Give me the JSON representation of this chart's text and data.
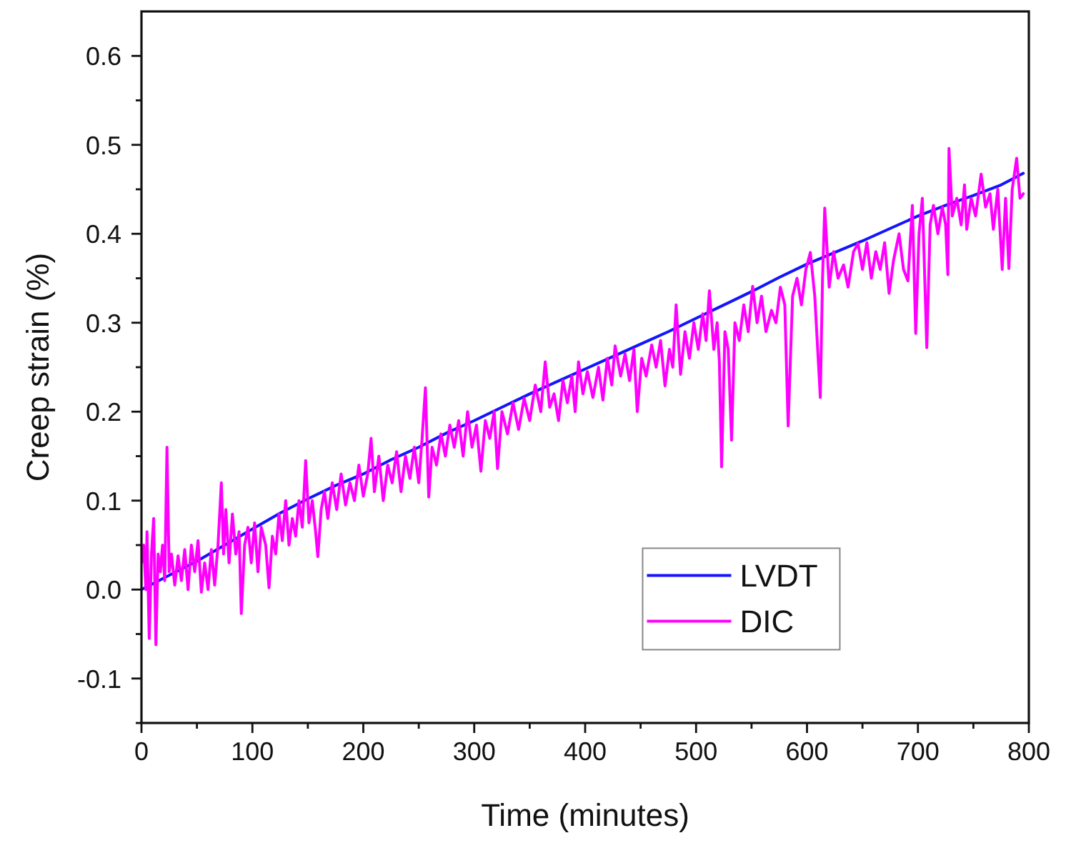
{
  "chart_data": {
    "type": "line",
    "xlabel": "Time (minutes)",
    "ylabel": "Creep strain (%)",
    "xlim": [
      0,
      800
    ],
    "ylim": [
      -0.15,
      0.65
    ],
    "xticks": [
      0,
      {
        "value": 50,
        "label": null
      },
      100,
      {
        "value": 150,
        "label": null
      },
      200,
      {
        "value": 250,
        "label": null
      },
      300,
      {
        "value": 350,
        "label": null
      },
      400,
      {
        "value": 450,
        "label": null
      },
      500,
      {
        "value": 550,
        "label": null
      },
      600,
      {
        "value": 650,
        "label": null
      },
      700,
      {
        "value": 750,
        "label": null
      },
      800
    ],
    "yticks": [
      {
        "value": -0.15,
        "label": null
      },
      -0.1,
      {
        "value": -0.05,
        "label": null
      },
      {
        "value": 0,
        "label": "0.0"
      },
      {
        "value": 0.05,
        "label": null
      },
      0.1,
      {
        "value": 0.15,
        "label": null
      },
      0.2,
      {
        "value": 0.25,
        "label": null
      },
      0.3,
      {
        "value": 0.35,
        "label": null
      },
      0.4,
      {
        "value": 0.45,
        "label": null
      },
      0.5,
      {
        "value": 0.55,
        "label": null
      },
      0.6
    ],
    "legend": "bottom right",
    "series": [
      {
        "name": "LVDT",
        "color": "#1414ff",
        "x": [
          0,
          25,
          50,
          75,
          100,
          125,
          150,
          175,
          200,
          225,
          250,
          275,
          300,
          325,
          350,
          375,
          400,
          425,
          450,
          475,
          500,
          525,
          550,
          575,
          600,
          625,
          650,
          675,
          700,
          725,
          750,
          775,
          795
        ],
        "values": [
          0,
          0.016,
          0.032,
          0.05,
          0.068,
          0.086,
          0.102,
          0.117,
          0.13,
          0.146,
          0.16,
          0.176,
          0.19,
          0.205,
          0.22,
          0.234,
          0.248,
          0.262,
          0.276,
          0.29,
          0.305,
          0.32,
          0.335,
          0.351,
          0.366,
          0.379,
          0.392,
          0.406,
          0.42,
          0.432,
          0.443,
          0.455,
          0.468
        ]
      },
      {
        "name": "DIC",
        "color": "#ff00ff",
        "x": [
          0,
          2,
          4,
          5,
          7,
          9,
          11,
          13,
          15,
          17,
          19,
          21,
          23,
          25,
          27,
          30,
          33,
          36,
          39,
          42,
          45,
          48,
          51,
          54,
          57,
          60,
          63,
          66,
          69,
          72,
          74,
          76,
          79,
          82,
          85,
          88,
          90,
          93,
          96,
          99,
          102,
          105,
          108,
          112,
          115,
          118,
          121,
          124,
          127,
          130,
          133,
          136,
          139,
          142,
          145,
          148,
          151,
          154,
          157,
          159,
          162,
          165,
          168,
          172,
          176,
          180,
          184,
          188,
          192,
          196,
          200,
          204,
          207,
          210,
          214,
          218,
          222,
          226,
          230,
          234,
          238,
          242,
          246,
          250,
          253,
          256,
          259,
          262,
          266,
          270,
          274,
          278,
          282,
          286,
          290,
          294,
          298,
          302,
          306,
          310,
          314,
          318,
          321,
          325,
          330,
          335,
          340,
          345,
          350,
          355,
          360,
          364,
          368,
          372,
          376,
          380,
          384,
          388,
          391,
          394,
          398,
          402,
          407,
          412,
          416,
          420,
          424,
          427,
          432,
          436,
          440,
          444,
          447,
          451,
          455,
          460,
          464,
          468,
          472,
          476,
          479,
          482,
          486,
          490,
          494,
          498,
          502,
          506,
          509,
          512,
          516,
          519,
          521,
          523,
          526,
          529,
          532,
          535,
          539,
          543,
          547,
          551,
          555,
          559,
          563,
          568,
          572,
          576,
          580,
          583,
          587,
          591,
          595,
          599,
          603,
          607,
          612,
          614,
          616,
          620,
          624,
          628,
          633,
          637,
          642,
          646,
          650,
          654,
          658,
          662,
          666,
          670,
          674,
          678,
          683,
          687,
          691,
          695,
          698,
          701,
          704,
          708,
          711,
          714,
          718,
          722,
          725,
          727,
          728,
          731,
          735,
          739,
          742,
          744,
          748,
          752,
          757,
          761,
          765,
          768,
          772,
          776,
          779,
          782,
          785,
          789,
          792,
          795
        ],
        "values": [
          0.03,
          0.05,
          0.0,
          0.065,
          -0.055,
          0.04,
          0.08,
          -0.062,
          0.04,
          0.02,
          0.05,
          0.01,
          0.16,
          0.02,
          0.04,
          0.005,
          0.038,
          0.01,
          0.045,
          0.0,
          0.05,
          0.02,
          0.055,
          -0.003,
          0.03,
          0.0,
          0.045,
          0.005,
          0.05,
          0.12,
          0.04,
          0.09,
          0.03,
          0.085,
          0.04,
          0.065,
          -0.027,
          0.05,
          0.07,
          0.03,
          0.075,
          0.02,
          0.07,
          0.05,
          0.002,
          0.06,
          0.04,
          0.085,
          0.055,
          0.1,
          0.05,
          0.08,
          0.06,
          0.1,
          0.07,
          0.145,
          0.075,
          0.1,
          0.065,
          0.037,
          0.09,
          0.11,
          0.08,
          0.12,
          0.09,
          0.13,
          0.095,
          0.12,
          0.1,
          0.14,
          0.105,
          0.13,
          0.17,
          0.11,
          0.15,
          0.1,
          0.14,
          0.12,
          0.155,
          0.11,
          0.15,
          0.125,
          0.16,
          0.12,
          0.17,
          0.227,
          0.104,
          0.16,
          0.14,
          0.175,
          0.15,
          0.185,
          0.16,
          0.19,
          0.15,
          0.2,
          0.16,
          0.185,
          0.133,
          0.19,
          0.17,
          0.2,
          0.136,
          0.2,
          0.175,
          0.21,
          0.18,
          0.215,
          0.19,
          0.23,
          0.2,
          0.256,
          0.205,
          0.22,
          0.19,
          0.235,
          0.21,
          0.24,
          0.2,
          0.256,
          0.22,
          0.245,
          0.216,
          0.25,
          0.213,
          0.26,
          0.23,
          0.274,
          0.24,
          0.265,
          0.235,
          0.27,
          0.2,
          0.26,
          0.24,
          0.275,
          0.25,
          0.28,
          0.229,
          0.27,
          0.25,
          0.32,
          0.242,
          0.29,
          0.26,
          0.3,
          0.27,
          0.31,
          0.28,
          0.336,
          0.27,
          0.3,
          0.256,
          0.138,
          0.29,
          0.27,
          0.168,
          0.3,
          0.28,
          0.32,
          0.29,
          0.341,
          0.3,
          0.33,
          0.29,
          0.314,
          0.3,
          0.34,
          0.32,
          0.184,
          0.33,
          0.35,
          0.32,
          0.36,
          0.379,
          0.33,
          0.216,
          0.35,
          0.429,
          0.34,
          0.38,
          0.35,
          0.365,
          0.34,
          0.38,
          0.389,
          0.36,
          0.39,
          0.35,
          0.38,
          0.36,
          0.39,
          0.333,
          0.37,
          0.4,
          0.36,
          0.347,
          0.432,
          0.288,
          0.4,
          0.44,
          0.272,
          0.41,
          0.432,
          0.4,
          0.43,
          0.41,
          0.354,
          0.496,
          0.42,
          0.44,
          0.41,
          0.455,
          0.405,
          0.44,
          0.42,
          0.467,
          0.43,
          0.445,
          0.405,
          0.45,
          0.36,
          0.44,
          0.361,
          0.45,
          0.485,
          0.44,
          0.445
        ]
      }
    ]
  }
}
